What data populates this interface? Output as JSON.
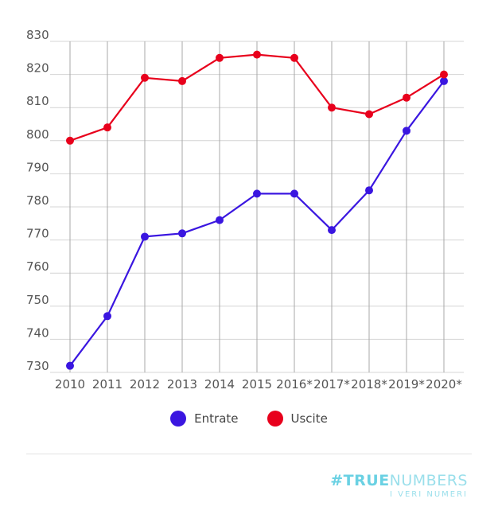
{
  "chart_data": {
    "type": "line",
    "categories": [
      "2010",
      "2011",
      "2012",
      "2013",
      "2014",
      "2015",
      "2016*",
      "2017*",
      "2018*",
      "2019*",
      "2020*"
    ],
    "series": [
      {
        "name": "Entrate",
        "color": "#3a16e0",
        "values": [
          732,
          747,
          771,
          772,
          776,
          784,
          784,
          773,
          785,
          803,
          818
        ]
      },
      {
        "name": "Uscite",
        "color": "#e8001c",
        "values": [
          800,
          804,
          819,
          818,
          825,
          826,
          825,
          810,
          808,
          813,
          820
        ]
      }
    ],
    "ylim": [
      730,
      830
    ],
    "yticks": [
      730,
      740,
      750,
      760,
      770,
      780,
      790,
      800,
      810,
      820,
      830
    ],
    "grid": true,
    "legend": "bottom-center"
  },
  "brand": {
    "bold": "#TRUE",
    "thin": "NUMBERS",
    "tagline": "I VERI NUMERI"
  }
}
